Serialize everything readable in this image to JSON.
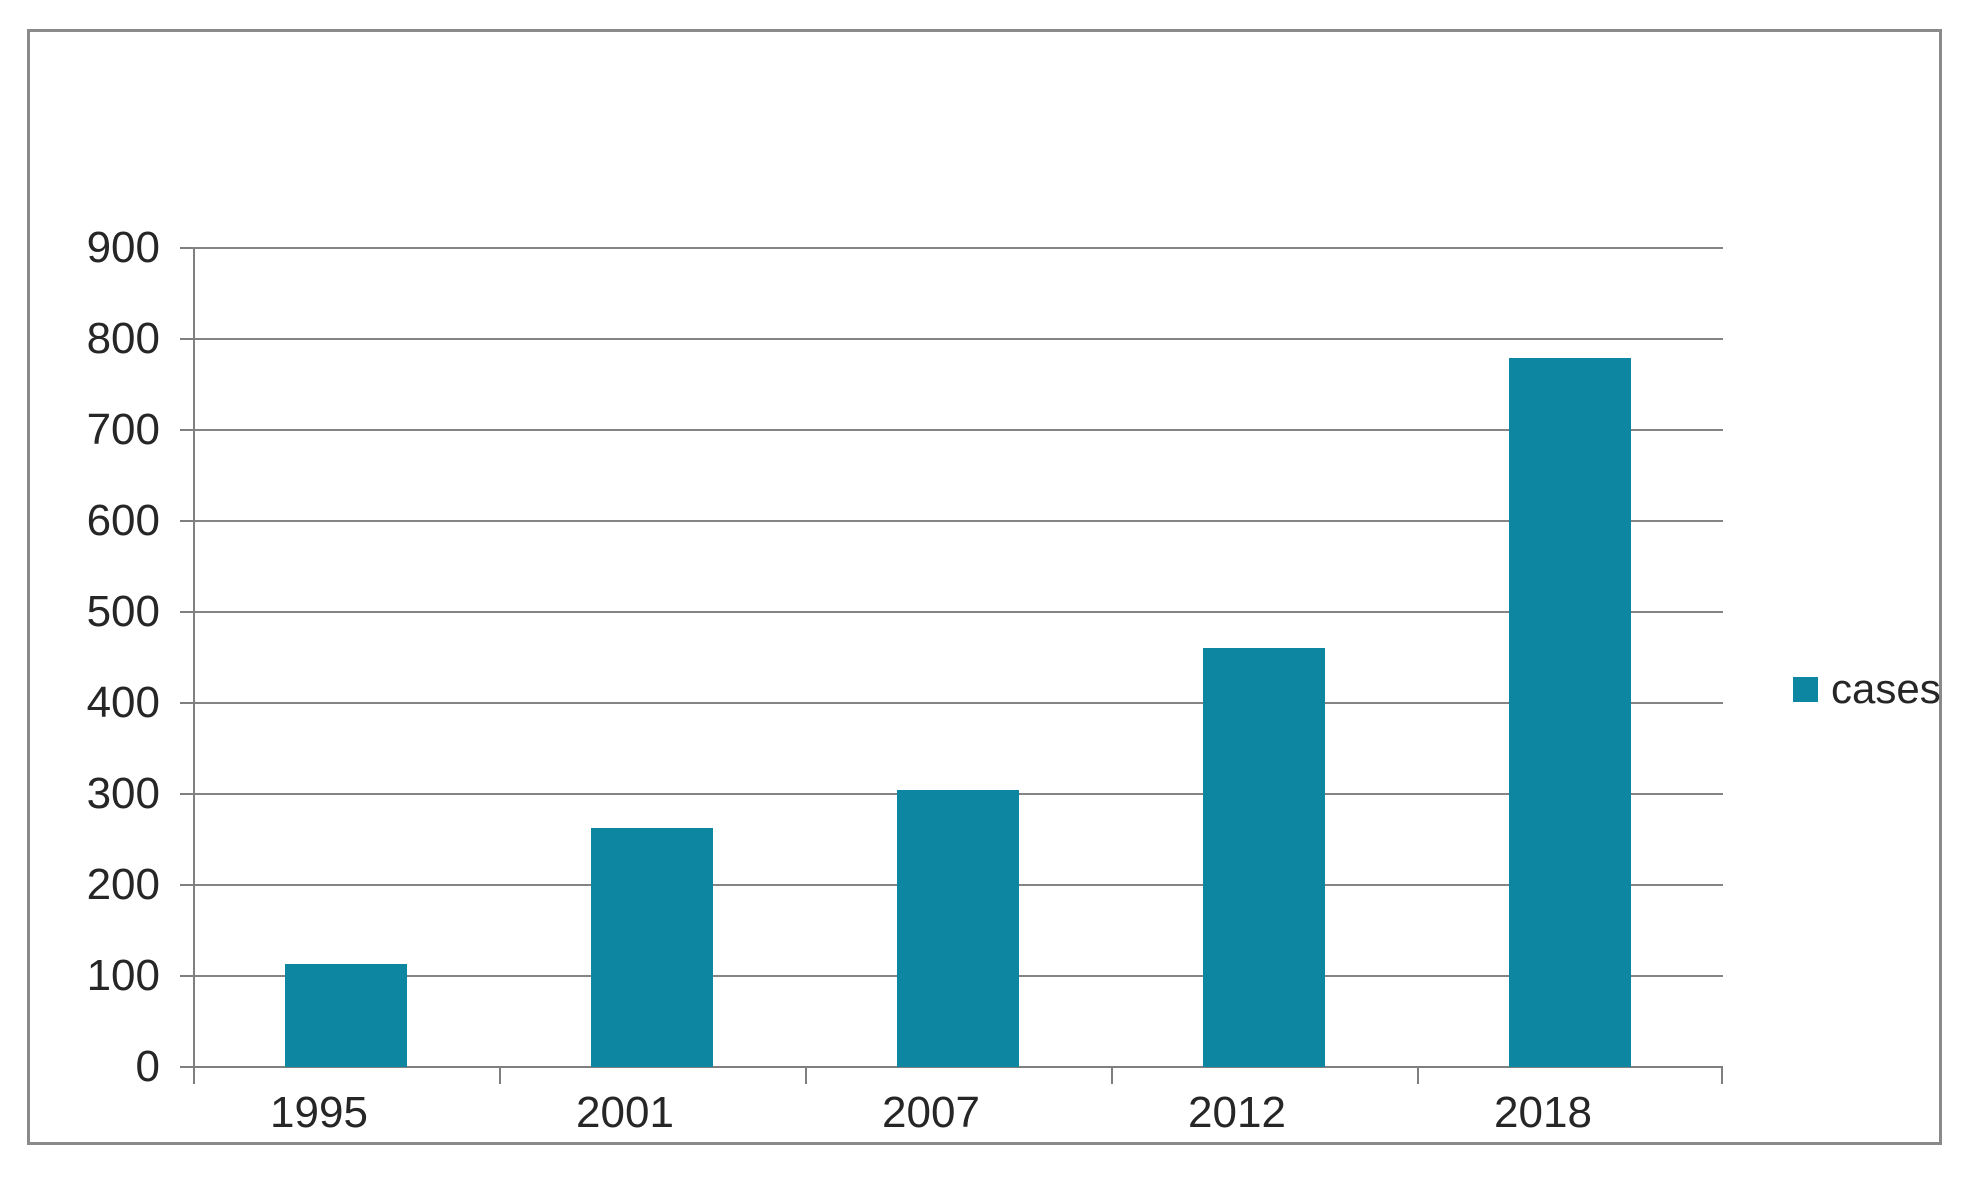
{
  "chart_data": {
    "type": "bar",
    "title": "",
    "xlabel": "",
    "ylabel": "",
    "categories": [
      "1995",
      "2001",
      "2007",
      "2012",
      "2018"
    ],
    "series": [
      {
        "name": "cases",
        "values": [
          113,
          263,
          304,
          461,
          779
        ]
      }
    ],
    "ylim": [
      0,
      900
    ],
    "ytick_step": 100,
    "yticks": [
      0,
      100,
      200,
      300,
      400,
      500,
      600,
      700,
      800,
      900
    ],
    "grid": true,
    "legend": {
      "position": "right-middle",
      "entries": [
        {
          "label": "cases",
          "swatch": "square"
        }
      ]
    },
    "colors": {
      "bar": "#0d87a1",
      "gridline": "#848484",
      "axis": "#7f7f7f",
      "frame": "#8a8a8a",
      "text": "#262626",
      "background": "#ffffff"
    }
  }
}
